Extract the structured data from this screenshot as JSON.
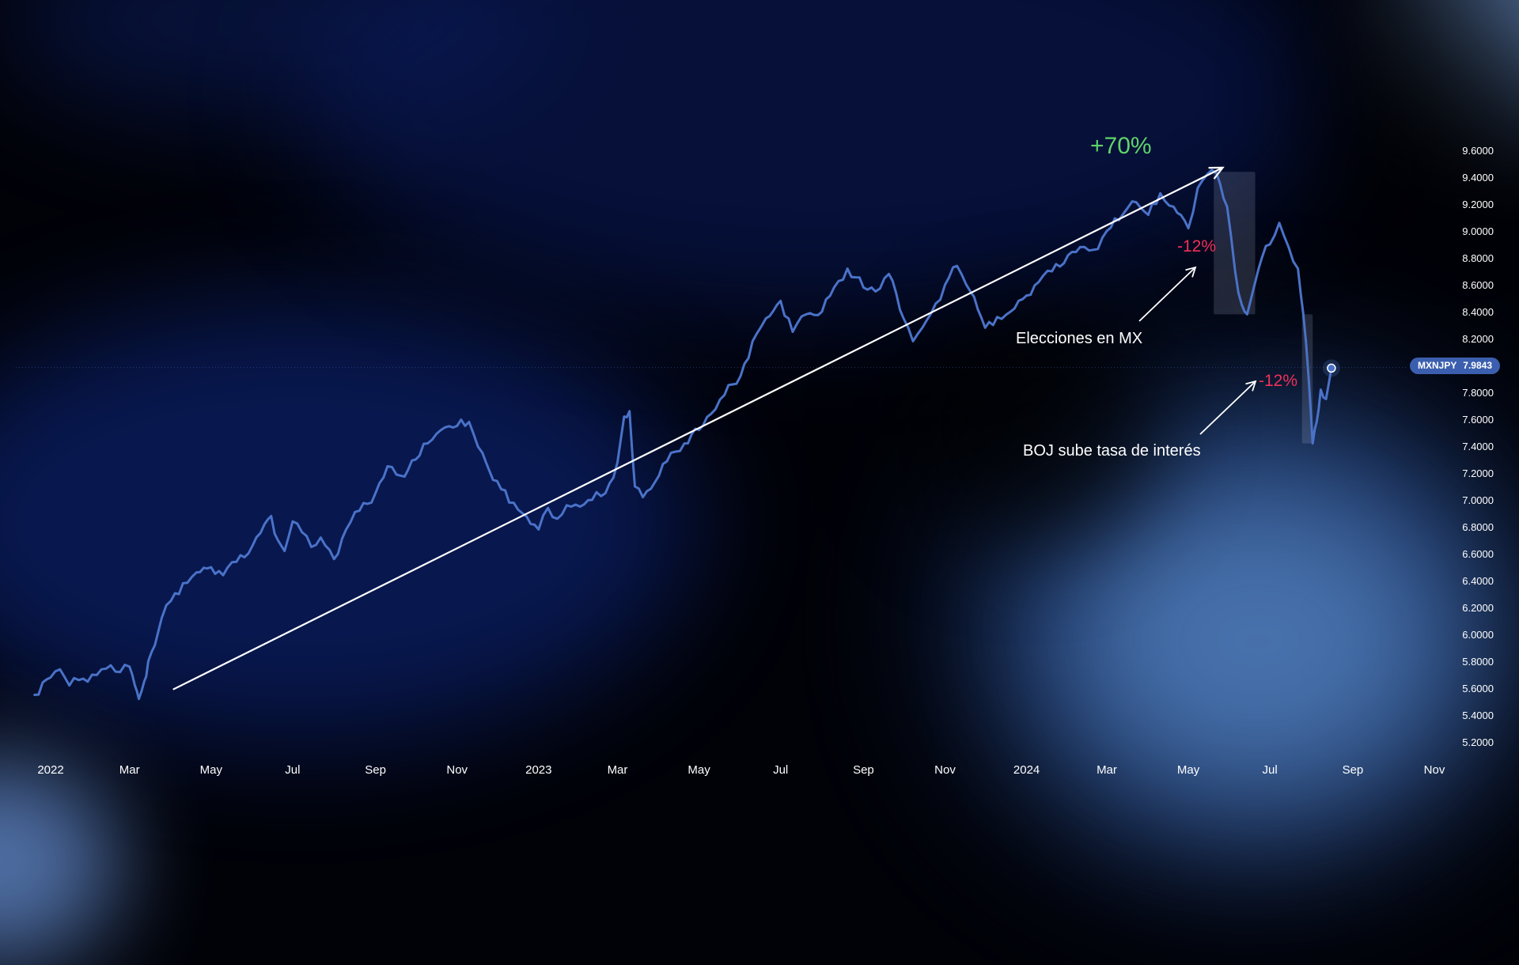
{
  "colors": {
    "series": "#4a72c8",
    "trend_arrow": "#ffffff",
    "gain": "#5fd36a",
    "loss": "#f0305a",
    "highlight": "#c8d4f0",
    "price_tag": "#3b5fae"
  },
  "annotations": {
    "gain": "+70%",
    "drop_1": "-12%",
    "drop_2": "-12%",
    "event_1": "Elecciones en MX",
    "event_2": "BOJ sube tasa de interés"
  },
  "price_tag": {
    "symbol": "MXNJPY",
    "value": "7.9843"
  },
  "chart_data": {
    "type": "line",
    "title": "",
    "xlabel": "",
    "ylabel": "",
    "symbol": "MXNJPY",
    "last_value": 7.9843,
    "x_ticks": [
      "2022",
      "Mar",
      "May",
      "Jul",
      "Sep",
      "Nov",
      "2023",
      "Mar",
      "May",
      "Jul",
      "Sep",
      "Nov",
      "2024",
      "Mar",
      "May",
      "Jul",
      "Sep",
      "Nov"
    ],
    "x_tick_dates": [
      "2022-01-01",
      "2022-03-01",
      "2022-05-01",
      "2022-07-01",
      "2022-09-01",
      "2022-11-01",
      "2023-01-01",
      "2023-03-01",
      "2023-05-01",
      "2023-07-01",
      "2023-09-01",
      "2023-11-01",
      "2024-01-01",
      "2024-03-01",
      "2024-05-01",
      "2024-07-01",
      "2024-09-01",
      "2024-11-01"
    ],
    "y_ticks": [
      "5.2000",
      "5.4000",
      "5.6000",
      "5.8000",
      "6.0000",
      "6.2000",
      "6.4000",
      "6.6000",
      "6.8000",
      "7.0000",
      "7.2000",
      "7.4000",
      "7.6000",
      "7.8000",
      "8.2000",
      "8.4000",
      "8.6000",
      "8.8000",
      "9.0000",
      "9.2000",
      "9.4000",
      "9.6000"
    ],
    "ylim": [
      5.1,
      9.7
    ],
    "grid": false,
    "series": [
      {
        "x": [
          "2021-12-20",
          "2022-01-01",
          "2022-01-08",
          "2022-01-15",
          "2022-01-22",
          "2022-02-01",
          "2022-02-08",
          "2022-02-15",
          "2022-02-22",
          "2022-03-01",
          "2022-03-05",
          "2022-03-08",
          "2022-03-12",
          "2022-03-15",
          "2022-03-20",
          "2022-03-25",
          "2022-04-01",
          "2022-04-10",
          "2022-04-20",
          "2022-05-01",
          "2022-05-10",
          "2022-05-20",
          "2022-06-01",
          "2022-06-10",
          "2022-06-15",
          "2022-06-20",
          "2022-06-25",
          "2022-07-01",
          "2022-07-08",
          "2022-07-15",
          "2022-07-22",
          "2022-08-01",
          "2022-08-10",
          "2022-08-20",
          "2022-09-01",
          "2022-09-10",
          "2022-09-20",
          "2022-10-01",
          "2022-10-10",
          "2022-10-20",
          "2022-11-01",
          "2022-11-10",
          "2022-11-20",
          "2022-11-25",
          "2022-12-01",
          "2022-12-10",
          "2022-12-20",
          "2023-01-01",
          "2023-01-08",
          "2023-01-15",
          "2023-01-22",
          "2023-02-01",
          "2023-02-10",
          "2023-02-20",
          "2023-03-01",
          "2023-03-06",
          "2023-03-10",
          "2023-03-14",
          "2023-03-20",
          "2023-04-01",
          "2023-04-10",
          "2023-04-20",
          "2023-05-01",
          "2023-05-10",
          "2023-05-20",
          "2023-06-01",
          "2023-06-10",
          "2023-06-20",
          "2023-07-01",
          "2023-07-10",
          "2023-07-20",
          "2023-08-01",
          "2023-08-10",
          "2023-08-20",
          "2023-09-01",
          "2023-09-10",
          "2023-09-20",
          "2023-10-01",
          "2023-10-08",
          "2023-10-15",
          "2023-10-25",
          "2023-11-01",
          "2023-11-10",
          "2023-11-20",
          "2023-12-01",
          "2023-12-10",
          "2023-12-20",
          "2024-01-01",
          "2024-01-10",
          "2024-01-20",
          "2024-02-01",
          "2024-02-10",
          "2024-02-20",
          "2024-03-01",
          "2024-03-10",
          "2024-03-20",
          "2024-04-01",
          "2024-04-10",
          "2024-04-20",
          "2024-05-01",
          "2024-05-08",
          "2024-05-15",
          "2024-05-22",
          "2024-05-30",
          "2024-06-05",
          "2024-06-10",
          "2024-06-14",
          "2024-06-20",
          "2024-06-25",
          "2024-07-01",
          "2024-07-08",
          "2024-07-15",
          "2024-07-22",
          "2024-07-26",
          "2024-07-30",
          "2024-08-02",
          "2024-08-05",
          "2024-08-08",
          "2024-08-12",
          "2024-08-16"
        ],
        "values": [
          5.55,
          5.68,
          5.74,
          5.62,
          5.66,
          5.7,
          5.74,
          5.77,
          5.72,
          5.76,
          5.62,
          5.52,
          5.65,
          5.8,
          5.92,
          6.12,
          6.25,
          6.38,
          6.46,
          6.5,
          6.44,
          6.54,
          6.66,
          6.82,
          6.88,
          6.7,
          6.62,
          6.84,
          6.76,
          6.65,
          6.72,
          6.56,
          6.78,
          6.92,
          7.05,
          7.25,
          7.18,
          7.3,
          7.42,
          7.52,
          7.55,
          7.58,
          7.35,
          7.22,
          7.14,
          6.98,
          6.9,
          6.78,
          6.94,
          6.86,
          6.96,
          6.95,
          7.0,
          7.05,
          7.28,
          7.62,
          7.66,
          7.1,
          7.02,
          7.18,
          7.35,
          7.42,
          7.52,
          7.64,
          7.78,
          7.92,
          8.18,
          8.35,
          8.48,
          8.25,
          8.38,
          8.4,
          8.58,
          8.72,
          8.58,
          8.55,
          8.68,
          8.35,
          8.18,
          8.28,
          8.46,
          8.6,
          8.74,
          8.55,
          8.28,
          8.36,
          8.4,
          8.52,
          8.62,
          8.7,
          8.82,
          8.88,
          8.86,
          9.0,
          9.08,
          9.22,
          9.12,
          9.28,
          9.18,
          9.02,
          9.32,
          9.42,
          9.43,
          9.18,
          8.7,
          8.45,
          8.38,
          8.62,
          8.8,
          8.9,
          9.06,
          8.88,
          8.72,
          8.38,
          7.9,
          7.42,
          7.58,
          7.82,
          7.75,
          7.98
        ]
      }
    ],
    "trend": {
      "from": [
        "2022-03-01",
        5.59
      ],
      "to": [
        "2024-05-22",
        9.43
      ]
    },
    "shaded_regions": [
      {
        "from": "2024-05-20",
        "to": "2024-06-20",
        "ymin": 8.38,
        "ymax": 9.44
      },
      {
        "from": "2024-07-25",
        "to": "2024-08-02",
        "ymin": 7.42,
        "ymax": 8.38
      }
    ]
  }
}
